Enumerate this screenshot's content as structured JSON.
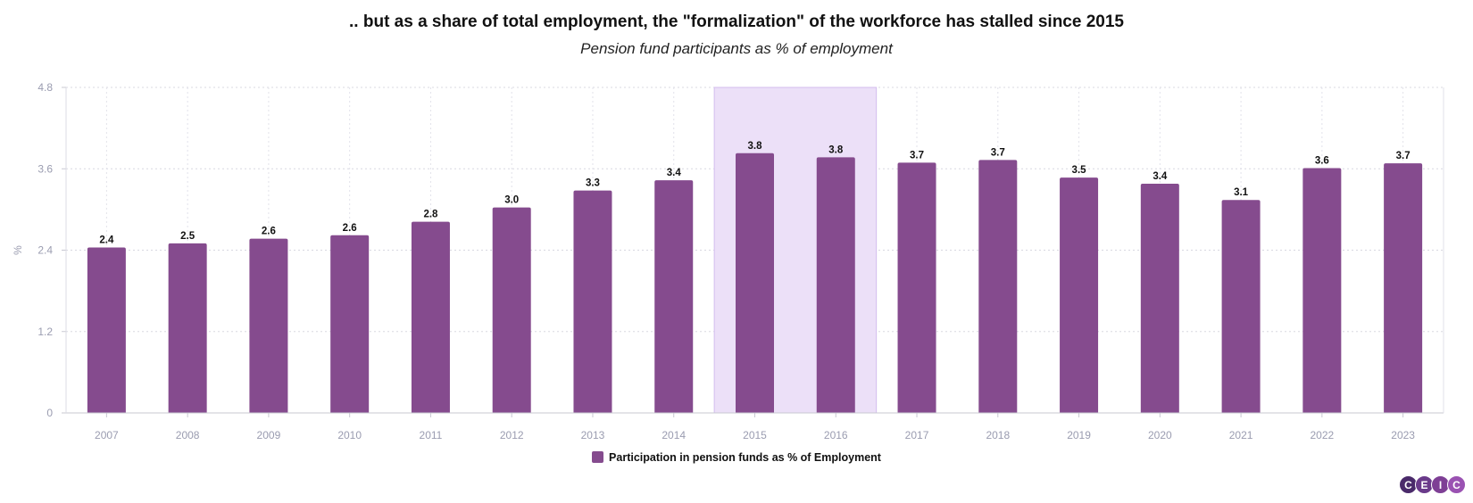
{
  "chart_data": {
    "type": "bar",
    "title": ".. but as a share of total employment, the \"formalization\" of the workforce has stalled since 2015",
    "subtitle": "Pension fund participants as % of employment",
    "ylabel": "%",
    "xlabel": "",
    "ylim": [
      0,
      4.8
    ],
    "yticks": [
      "0",
      "1.2",
      "2.4",
      "3.6",
      "4.8"
    ],
    "categories": [
      "2007",
      "2008",
      "2009",
      "2010",
      "2011",
      "2012",
      "2013",
      "2014",
      "2015",
      "2016",
      "2017",
      "2018",
      "2019",
      "2020",
      "2021",
      "2022",
      "2023"
    ],
    "values": [
      2.44,
      2.5,
      2.57,
      2.62,
      2.82,
      3.03,
      3.28,
      3.43,
      3.83,
      3.77,
      3.69,
      3.73,
      3.47,
      3.38,
      3.14,
      3.61,
      3.68
    ],
    "value_labels": [
      "2.4",
      "2.5",
      "2.6",
      "2.6",
      "2.8",
      "3.0",
      "3.3",
      "3.4",
      "3.8",
      "3.8",
      "3.7",
      "3.7",
      "3.5",
      "3.4",
      "3.1",
      "3.6",
      "3.7"
    ],
    "highlight_range": [
      "2015",
      "2016"
    ],
    "grid": true,
    "legend": {
      "label": "Participation in pension funds as % of Employment",
      "position": "bottom-center"
    },
    "colors": {
      "bar": "#854b8e",
      "highlight_fill": "#ece0f8",
      "highlight_border": "#d3bdee"
    }
  },
  "logo": {
    "letters": [
      "C",
      "E",
      "I",
      "C"
    ],
    "colors": [
      "#4a2a6a",
      "#6a3a8a",
      "#7e3f95",
      "#9a52b2"
    ]
  }
}
